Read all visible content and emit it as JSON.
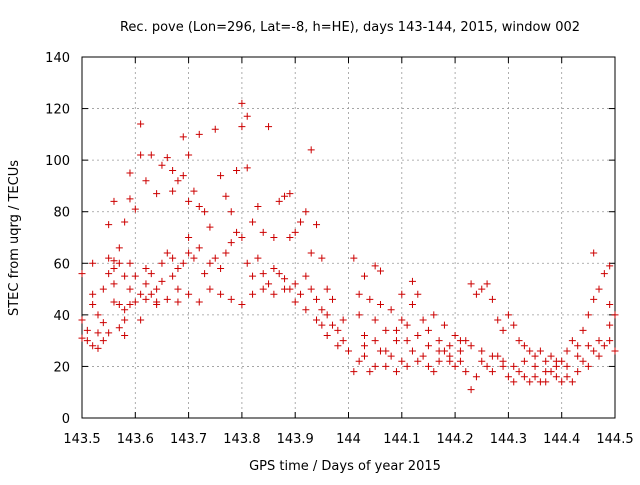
{
  "chart_data": {
    "type": "scatter",
    "title": "Rec. pove (Lon=296, Lat=-8, h=HE), days 143-144, 2015, window 002",
    "xlabel": "GPS time / Days of year 2015",
    "ylabel": "STEC from uqrg / TECUs",
    "xlim": [
      143.5,
      144.5
    ],
    "ylim": [
      0,
      140
    ],
    "x_ticks": [
      143.5,
      143.6,
      143.7,
      143.8,
      143.9,
      144.0,
      144.1,
      144.2,
      144.3,
      144.4,
      144.5
    ],
    "x_tick_labels": [
      "143.5",
      "143.6",
      "143.7",
      "143.8",
      "143.9",
      "144",
      "144.1",
      "144.2",
      "144.3",
      "144.4",
      "144.5"
    ],
    "y_ticks": [
      0,
      20,
      40,
      60,
      80,
      100,
      120,
      140
    ],
    "y_tick_labels": [
      "0",
      "20",
      "40",
      "60",
      "80",
      "100",
      "120",
      "140"
    ],
    "grid": true,
    "legend": "none",
    "marker": "+",
    "color": "#cc0000",
    "points": [
      [
        143.5,
        56
      ],
      [
        143.5,
        38
      ],
      [
        143.5,
        31
      ],
      [
        143.51,
        30
      ],
      [
        143.51,
        34
      ],
      [
        143.52,
        28
      ],
      [
        143.52,
        44
      ],
      [
        143.52,
        48
      ],
      [
        143.52,
        60
      ],
      [
        143.53,
        27
      ],
      [
        143.53,
        33
      ],
      [
        143.53,
        40
      ],
      [
        143.54,
        30
      ],
      [
        143.54,
        37
      ],
      [
        143.54,
        50
      ],
      [
        143.55,
        56
      ],
      [
        143.55,
        62
      ],
      [
        143.55,
        33
      ],
      [
        143.56,
        45
      ],
      [
        143.56,
        52
      ],
      [
        143.56,
        58
      ],
      [
        143.56,
        61
      ],
      [
        143.57,
        60
      ],
      [
        143.57,
        44
      ],
      [
        143.57,
        35
      ],
      [
        143.58,
        32
      ],
      [
        143.58,
        38
      ],
      [
        143.58,
        42
      ],
      [
        143.58,
        55
      ],
      [
        143.59,
        44
      ],
      [
        143.59,
        50
      ],
      [
        143.59,
        60
      ],
      [
        143.6,
        45
      ],
      [
        143.6,
        55
      ],
      [
        143.61,
        38
      ],
      [
        143.61,
        48
      ],
      [
        143.62,
        46
      ],
      [
        143.62,
        52
      ],
      [
        143.63,
        56
      ],
      [
        143.64,
        45
      ],
      [
        143.64,
        50
      ],
      [
        143.65,
        53
      ],
      [
        143.65,
        60
      ],
      [
        143.66,
        64
      ],
      [
        143.67,
        55
      ],
      [
        143.67,
        62
      ],
      [
        143.68,
        50
      ],
      [
        143.68,
        58
      ],
      [
        143.69,
        60
      ],
      [
        143.7,
        64
      ],
      [
        143.7,
        70
      ],
      [
        143.71,
        62
      ],
      [
        143.72,
        66
      ],
      [
        143.73,
        56
      ],
      [
        143.74,
        60
      ],
      [
        143.75,
        62
      ],
      [
        143.76,
        58
      ],
      [
        143.77,
        64
      ],
      [
        143.78,
        68
      ],
      [
        143.79,
        72
      ],
      [
        143.8,
        70
      ],
      [
        143.81,
        60
      ],
      [
        143.82,
        55
      ],
      [
        143.83,
        62
      ],
      [
        143.84,
        56
      ],
      [
        143.85,
        52
      ],
      [
        143.86,
        58
      ],
      [
        143.87,
        56
      ],
      [
        143.88,
        54
      ],
      [
        143.89,
        50
      ],
      [
        143.9,
        52
      ],
      [
        143.91,
        48
      ],
      [
        143.92,
        55
      ],
      [
        143.93,
        50
      ],
      [
        143.94,
        46
      ],
      [
        143.95,
        42
      ],
      [
        143.96,
        40
      ],
      [
        143.97,
        36
      ],
      [
        143.98,
        34
      ],
      [
        143.99,
        30
      ],
      [
        143.55,
        75
      ],
      [
        143.56,
        84
      ],
      [
        143.57,
        66
      ],
      [
        143.58,
        76
      ],
      [
        143.59,
        85
      ],
      [
        143.59,
        95
      ],
      [
        143.6,
        81
      ],
      [
        143.61,
        114
      ],
      [
        143.61,
        102
      ],
      [
        143.62,
        92
      ],
      [
        143.63,
        102
      ],
      [
        143.64,
        87
      ],
      [
        143.65,
        98
      ],
      [
        143.66,
        101
      ],
      [
        143.67,
        88
      ],
      [
        143.67,
        96
      ],
      [
        143.68,
        92
      ],
      [
        143.69,
        94
      ],
      [
        143.69,
        109
      ],
      [
        143.7,
        102
      ],
      [
        143.7,
        84
      ],
      [
        143.71,
        88
      ],
      [
        143.72,
        110
      ],
      [
        143.72,
        82
      ],
      [
        143.73,
        80
      ],
      [
        143.74,
        74
      ],
      [
        143.75,
        112
      ],
      [
        143.76,
        94
      ],
      [
        143.77,
        86
      ],
      [
        143.78,
        80
      ],
      [
        143.79,
        96
      ],
      [
        143.8,
        122
      ],
      [
        143.8,
        113
      ],
      [
        143.81,
        117
      ],
      [
        143.81,
        97
      ],
      [
        143.82,
        76
      ],
      [
        143.83,
        82
      ],
      [
        143.84,
        72
      ],
      [
        143.85,
        113
      ],
      [
        143.86,
        70
      ],
      [
        143.87,
        84
      ],
      [
        143.88,
        86
      ],
      [
        143.89,
        70
      ],
      [
        143.89,
        87
      ],
      [
        143.9,
        72
      ],
      [
        143.91,
        76
      ],
      [
        143.92,
        80
      ],
      [
        143.93,
        104
      ],
      [
        143.93,
        64
      ],
      [
        143.94,
        75
      ],
      [
        143.95,
        62
      ],
      [
        143.96,
        50
      ],
      [
        143.62,
        58
      ],
      [
        143.63,
        48
      ],
      [
        143.64,
        44
      ],
      [
        143.66,
        46
      ],
      [
        143.68,
        45
      ],
      [
        143.7,
        48
      ],
      [
        143.72,
        45
      ],
      [
        143.74,
        50
      ],
      [
        143.76,
        48
      ],
      [
        143.78,
        46
      ],
      [
        143.8,
        44
      ],
      [
        143.82,
        48
      ],
      [
        143.84,
        50
      ],
      [
        143.86,
        48
      ],
      [
        143.88,
        50
      ],
      [
        143.9,
        45
      ],
      [
        143.92,
        42
      ],
      [
        143.94,
        38
      ],
      [
        143.96,
        32
      ],
      [
        143.98,
        28
      ],
      [
        144.0,
        26
      ],
      [
        143.97,
        46
      ],
      [
        143.95,
        36
      ],
      [
        143.99,
        38
      ],
      [
        144.01,
        62
      ],
      [
        144.02,
        48
      ],
      [
        144.02,
        40
      ],
      [
        144.03,
        55
      ],
      [
        144.03,
        32
      ],
      [
        144.04,
        46
      ],
      [
        144.05,
        59
      ],
      [
        144.05,
        38
      ],
      [
        144.06,
        57
      ],
      [
        144.06,
        44
      ],
      [
        144.07,
        34
      ],
      [
        144.08,
        42
      ],
      [
        144.09,
        30
      ],
      [
        144.1,
        38
      ],
      [
        144.1,
        48
      ],
      [
        144.11,
        36
      ],
      [
        144.12,
        53
      ],
      [
        144.12,
        44
      ],
      [
        144.13,
        48
      ],
      [
        144.14,
        38
      ],
      [
        144.15,
        34
      ],
      [
        144.16,
        40
      ],
      [
        144.17,
        30
      ],
      [
        144.18,
        36
      ],
      [
        144.19,
        28
      ],
      [
        144.2,
        32
      ],
      [
        144.21,
        26
      ],
      [
        144.22,
        30
      ],
      [
        144.23,
        52
      ],
      [
        144.24,
        48
      ],
      [
        144.25,
        50
      ],
      [
        144.26,
        52
      ],
      [
        144.27,
        46
      ],
      [
        144.28,
        38
      ],
      [
        144.29,
        34
      ],
      [
        144.3,
        40
      ],
      [
        144.31,
        36
      ],
      [
        144.32,
        30
      ],
      [
        144.33,
        28
      ],
      [
        144.34,
        26
      ],
      [
        144.35,
        24
      ],
      [
        144.36,
        26
      ],
      [
        144.37,
        22
      ],
      [
        144.38,
        24
      ],
      [
        144.39,
        20
      ],
      [
        144.4,
        22
      ],
      [
        144.41,
        26
      ],
      [
        144.42,
        30
      ],
      [
        144.43,
        28
      ],
      [
        144.44,
        34
      ],
      [
        144.45,
        40
      ],
      [
        144.46,
        64
      ],
      [
        144.46,
        46
      ],
      [
        144.47,
        50
      ],
      [
        144.48,
        56
      ],
      [
        144.49,
        59
      ],
      [
        144.49,
        44
      ],
      [
        144.5,
        40
      ],
      [
        144.01,
        18
      ],
      [
        144.02,
        22
      ],
      [
        144.03,
        24
      ],
      [
        144.04,
        18
      ],
      [
        144.05,
        20
      ],
      [
        144.06,
        26
      ],
      [
        144.07,
        20
      ],
      [
        144.08,
        24
      ],
      [
        144.09,
        18
      ],
      [
        144.1,
        22
      ],
      [
        144.11,
        20
      ],
      [
        144.12,
        26
      ],
      [
        144.13,
        22
      ],
      [
        144.14,
        24
      ],
      [
        144.15,
        20
      ],
      [
        144.16,
        18
      ],
      [
        144.17,
        22
      ],
      [
        144.18,
        26
      ],
      [
        144.19,
        24
      ],
      [
        144.2,
        20
      ],
      [
        144.21,
        22
      ],
      [
        144.22,
        18
      ],
      [
        144.23,
        11
      ],
      [
        144.24,
        16
      ],
      [
        144.25,
        22
      ],
      [
        144.26,
        20
      ],
      [
        144.27,
        18
      ],
      [
        144.28,
        24
      ],
      [
        144.29,
        20
      ],
      [
        144.3,
        16
      ],
      [
        144.31,
        14
      ],
      [
        144.32,
        18
      ],
      [
        144.33,
        16
      ],
      [
        144.34,
        14
      ],
      [
        144.35,
        16
      ],
      [
        144.36,
        14
      ],
      [
        144.37,
        14
      ],
      [
        144.38,
        18
      ],
      [
        144.39,
        16
      ],
      [
        144.4,
        14
      ],
      [
        144.41,
        16
      ],
      [
        144.42,
        14
      ],
      [
        144.43,
        18
      ],
      [
        144.44,
        22
      ],
      [
        144.45,
        20
      ],
      [
        144.46,
        26
      ],
      [
        144.47,
        24
      ],
      [
        144.48,
        28
      ],
      [
        144.49,
        30
      ],
      [
        144.5,
        26
      ],
      [
        144.03,
        28
      ],
      [
        144.05,
        30
      ],
      [
        144.07,
        26
      ],
      [
        144.09,
        34
      ],
      [
        144.11,
        30
      ],
      [
        144.13,
        32
      ],
      [
        144.15,
        28
      ],
      [
        144.17,
        26
      ],
      [
        144.19,
        22
      ],
      [
        144.21,
        30
      ],
      [
        144.23,
        28
      ],
      [
        144.25,
        26
      ],
      [
        144.27,
        24
      ],
      [
        144.29,
        22
      ],
      [
        144.31,
        20
      ],
      [
        144.33,
        22
      ],
      [
        144.35,
        20
      ],
      [
        144.37,
        18
      ],
      [
        144.39,
        22
      ],
      [
        144.41,
        20
      ],
      [
        144.43,
        24
      ],
      [
        144.45,
        28
      ],
      [
        144.47,
        30
      ],
      [
        144.49,
        36
      ]
    ]
  }
}
